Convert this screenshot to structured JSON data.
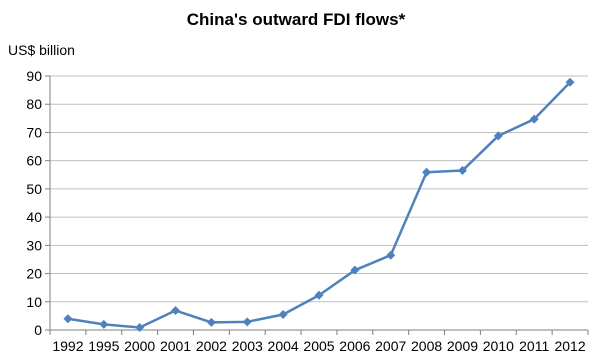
{
  "chart_data": {
    "type": "line",
    "title": "China's outward FDI flows*",
    "ylabel": "US$ billion",
    "xlabel": "",
    "categories": [
      "1992",
      "1995",
      "2000",
      "2001",
      "2002",
      "2003",
      "2004",
      "2005",
      "2006",
      "2007",
      "2008",
      "2009",
      "2010",
      "2011",
      "2012"
    ],
    "series": [
      {
        "values": [
          4,
          2,
          0.9,
          6.9,
          2.7,
          2.9,
          5.5,
          12.3,
          21.2,
          26.5,
          55.9,
          56.5,
          68.8,
          74.7,
          87.8
        ],
        "color": "#4f81bd"
      }
    ],
    "ylim": [
      0,
      90
    ],
    "yticks": [
      0,
      10,
      20,
      30,
      40,
      50,
      60,
      70,
      80,
      90
    ],
    "grid": true,
    "legend": "none"
  }
}
